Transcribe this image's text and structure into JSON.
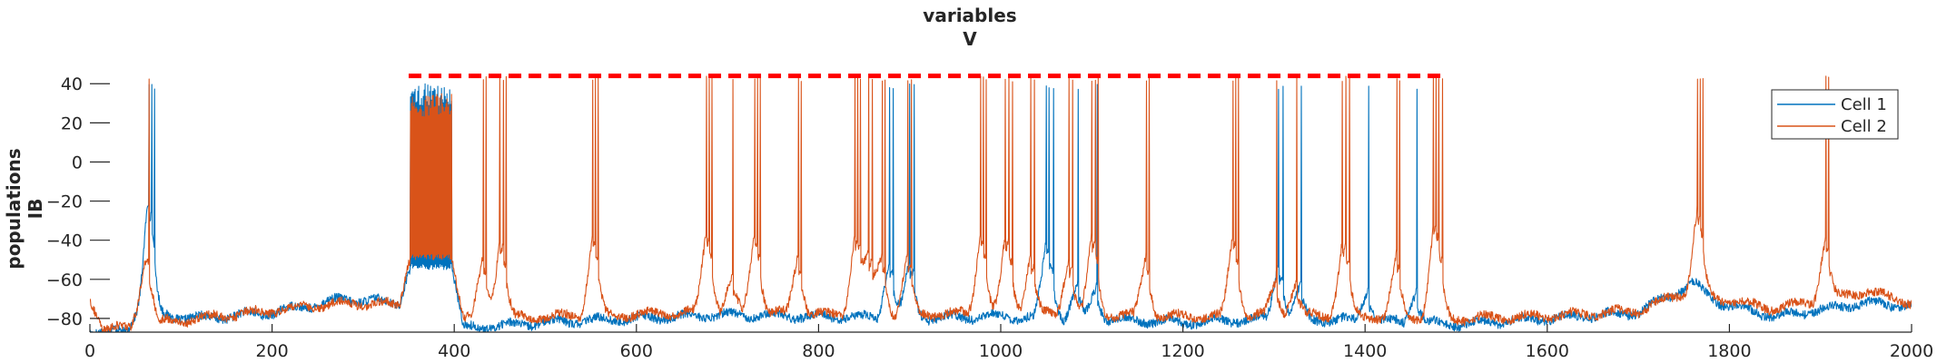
{
  "chart_data": {
    "type": "line",
    "title": "variables",
    "subtitle": "V",
    "ylabel": "populations",
    "ylabel2": "IB",
    "xlabel": "",
    "xlim": [
      0,
      2000
    ],
    "ylim": [
      -87,
      48
    ],
    "xticks": [
      0,
      200,
      400,
      600,
      800,
      1000,
      1200,
      1400,
      1600,
      1800,
      2000
    ],
    "xtick_labels": [
      "0",
      "200",
      "400",
      "600",
      "800",
      "1000",
      "1200",
      "1400",
      "1600",
      "1800",
      "2000"
    ],
    "yticks": [
      -80,
      -60,
      -40,
      -20,
      0,
      20,
      40
    ],
    "ytick_labels": [
      "−80",
      "−60",
      "−40",
      "−20",
      "0",
      "20",
      "40"
    ],
    "grid": false,
    "legend": {
      "position": "top-right",
      "entries": [
        "Cell 1",
        "Cell 2"
      ]
    },
    "annotation": {
      "type": "dashed-line",
      "color": "#ff0000",
      "x": [
        350,
        1490
      ],
      "y": 44
    },
    "series": [
      {
        "name": "Cell 1",
        "color": "#0072bd",
        "baseline": [
          [
            0,
            -86
          ],
          [
            40,
            -87
          ],
          [
            55,
            -72
          ],
          [
            62,
            -58
          ],
          [
            75,
            -78
          ],
          [
            120,
            -80
          ],
          [
            200,
            -77
          ],
          [
            280,
            -70
          ],
          [
            340,
            -72
          ],
          [
            350,
            -55
          ],
          [
            398,
            -55
          ],
          [
            410,
            -85
          ],
          [
            500,
            -82
          ],
          [
            600,
            -80
          ],
          [
            700,
            -78
          ],
          [
            800,
            -79
          ],
          [
            900,
            -80
          ],
          [
            1000,
            -79
          ],
          [
            1100,
            -80
          ],
          [
            1200,
            -82
          ],
          [
            1300,
            -80
          ],
          [
            1400,
            -81
          ],
          [
            1500,
            -83
          ],
          [
            1600,
            -80
          ],
          [
            1700,
            -77
          ],
          [
            1760,
            -62
          ],
          [
            1790,
            -72
          ],
          [
            1850,
            -79
          ],
          [
            1950,
            -72
          ],
          [
            2000,
            -74
          ]
        ],
        "spikes": [
          65,
          68,
          71,
          878,
          882,
          900,
          905,
          1050,
          1053,
          1058,
          1085,
          1106,
          1305,
          1310,
          1330,
          1404,
          1457
        ],
        "burst": {
          "start": 352,
          "end": 397,
          "low": -55,
          "high": 40
        },
        "spike_peak": 40
      },
      {
        "name": "Cell 2",
        "color": "#d95319",
        "baseline": [
          [
            0,
            -70
          ],
          [
            15,
            -85
          ],
          [
            45,
            -85
          ],
          [
            60,
            -62
          ],
          [
            75,
            -82
          ],
          [
            120,
            -80
          ],
          [
            200,
            -76
          ],
          [
            280,
            -72
          ],
          [
            340,
            -73
          ],
          [
            350,
            -50
          ],
          [
            398,
            -50
          ],
          [
            410,
            -80
          ],
          [
            500,
            -79
          ],
          [
            600,
            -78
          ],
          [
            700,
            -76
          ],
          [
            800,
            -78
          ],
          [
            900,
            -78
          ],
          [
            1000,
            -77
          ],
          [
            1100,
            -78
          ],
          [
            1200,
            -79
          ],
          [
            1300,
            -78
          ],
          [
            1400,
            -79
          ],
          [
            1500,
            -80
          ],
          [
            1600,
            -79
          ],
          [
            1700,
            -76
          ],
          [
            1760,
            -65
          ],
          [
            1790,
            -70
          ],
          [
            1850,
            -75
          ],
          [
            1950,
            -66
          ],
          [
            2000,
            -72
          ]
        ],
        "spikes": [
          65,
          432,
          435,
          450,
          454,
          457,
          552,
          555,
          558,
          677,
          680,
          683,
          706,
          730,
          733,
          736,
          778,
          781,
          840,
          843,
          846,
          855,
          859,
          870,
          873,
          898,
          902,
          978,
          981,
          984,
          1005,
          1009,
          1013,
          1033,
          1037,
          1075,
          1079,
          1100,
          1104,
          1107,
          1160,
          1163,
          1255,
          1258,
          1261,
          1303,
          1325,
          1375,
          1379,
          1383,
          1435,
          1438,
          1475,
          1478,
          1481,
          1485,
          1765,
          1768,
          1771,
          1906,
          1909
        ],
        "burst": {
          "start": 352,
          "end": 397,
          "low": -50,
          "high": 35
        },
        "spike_peak": 44
      }
    ]
  }
}
